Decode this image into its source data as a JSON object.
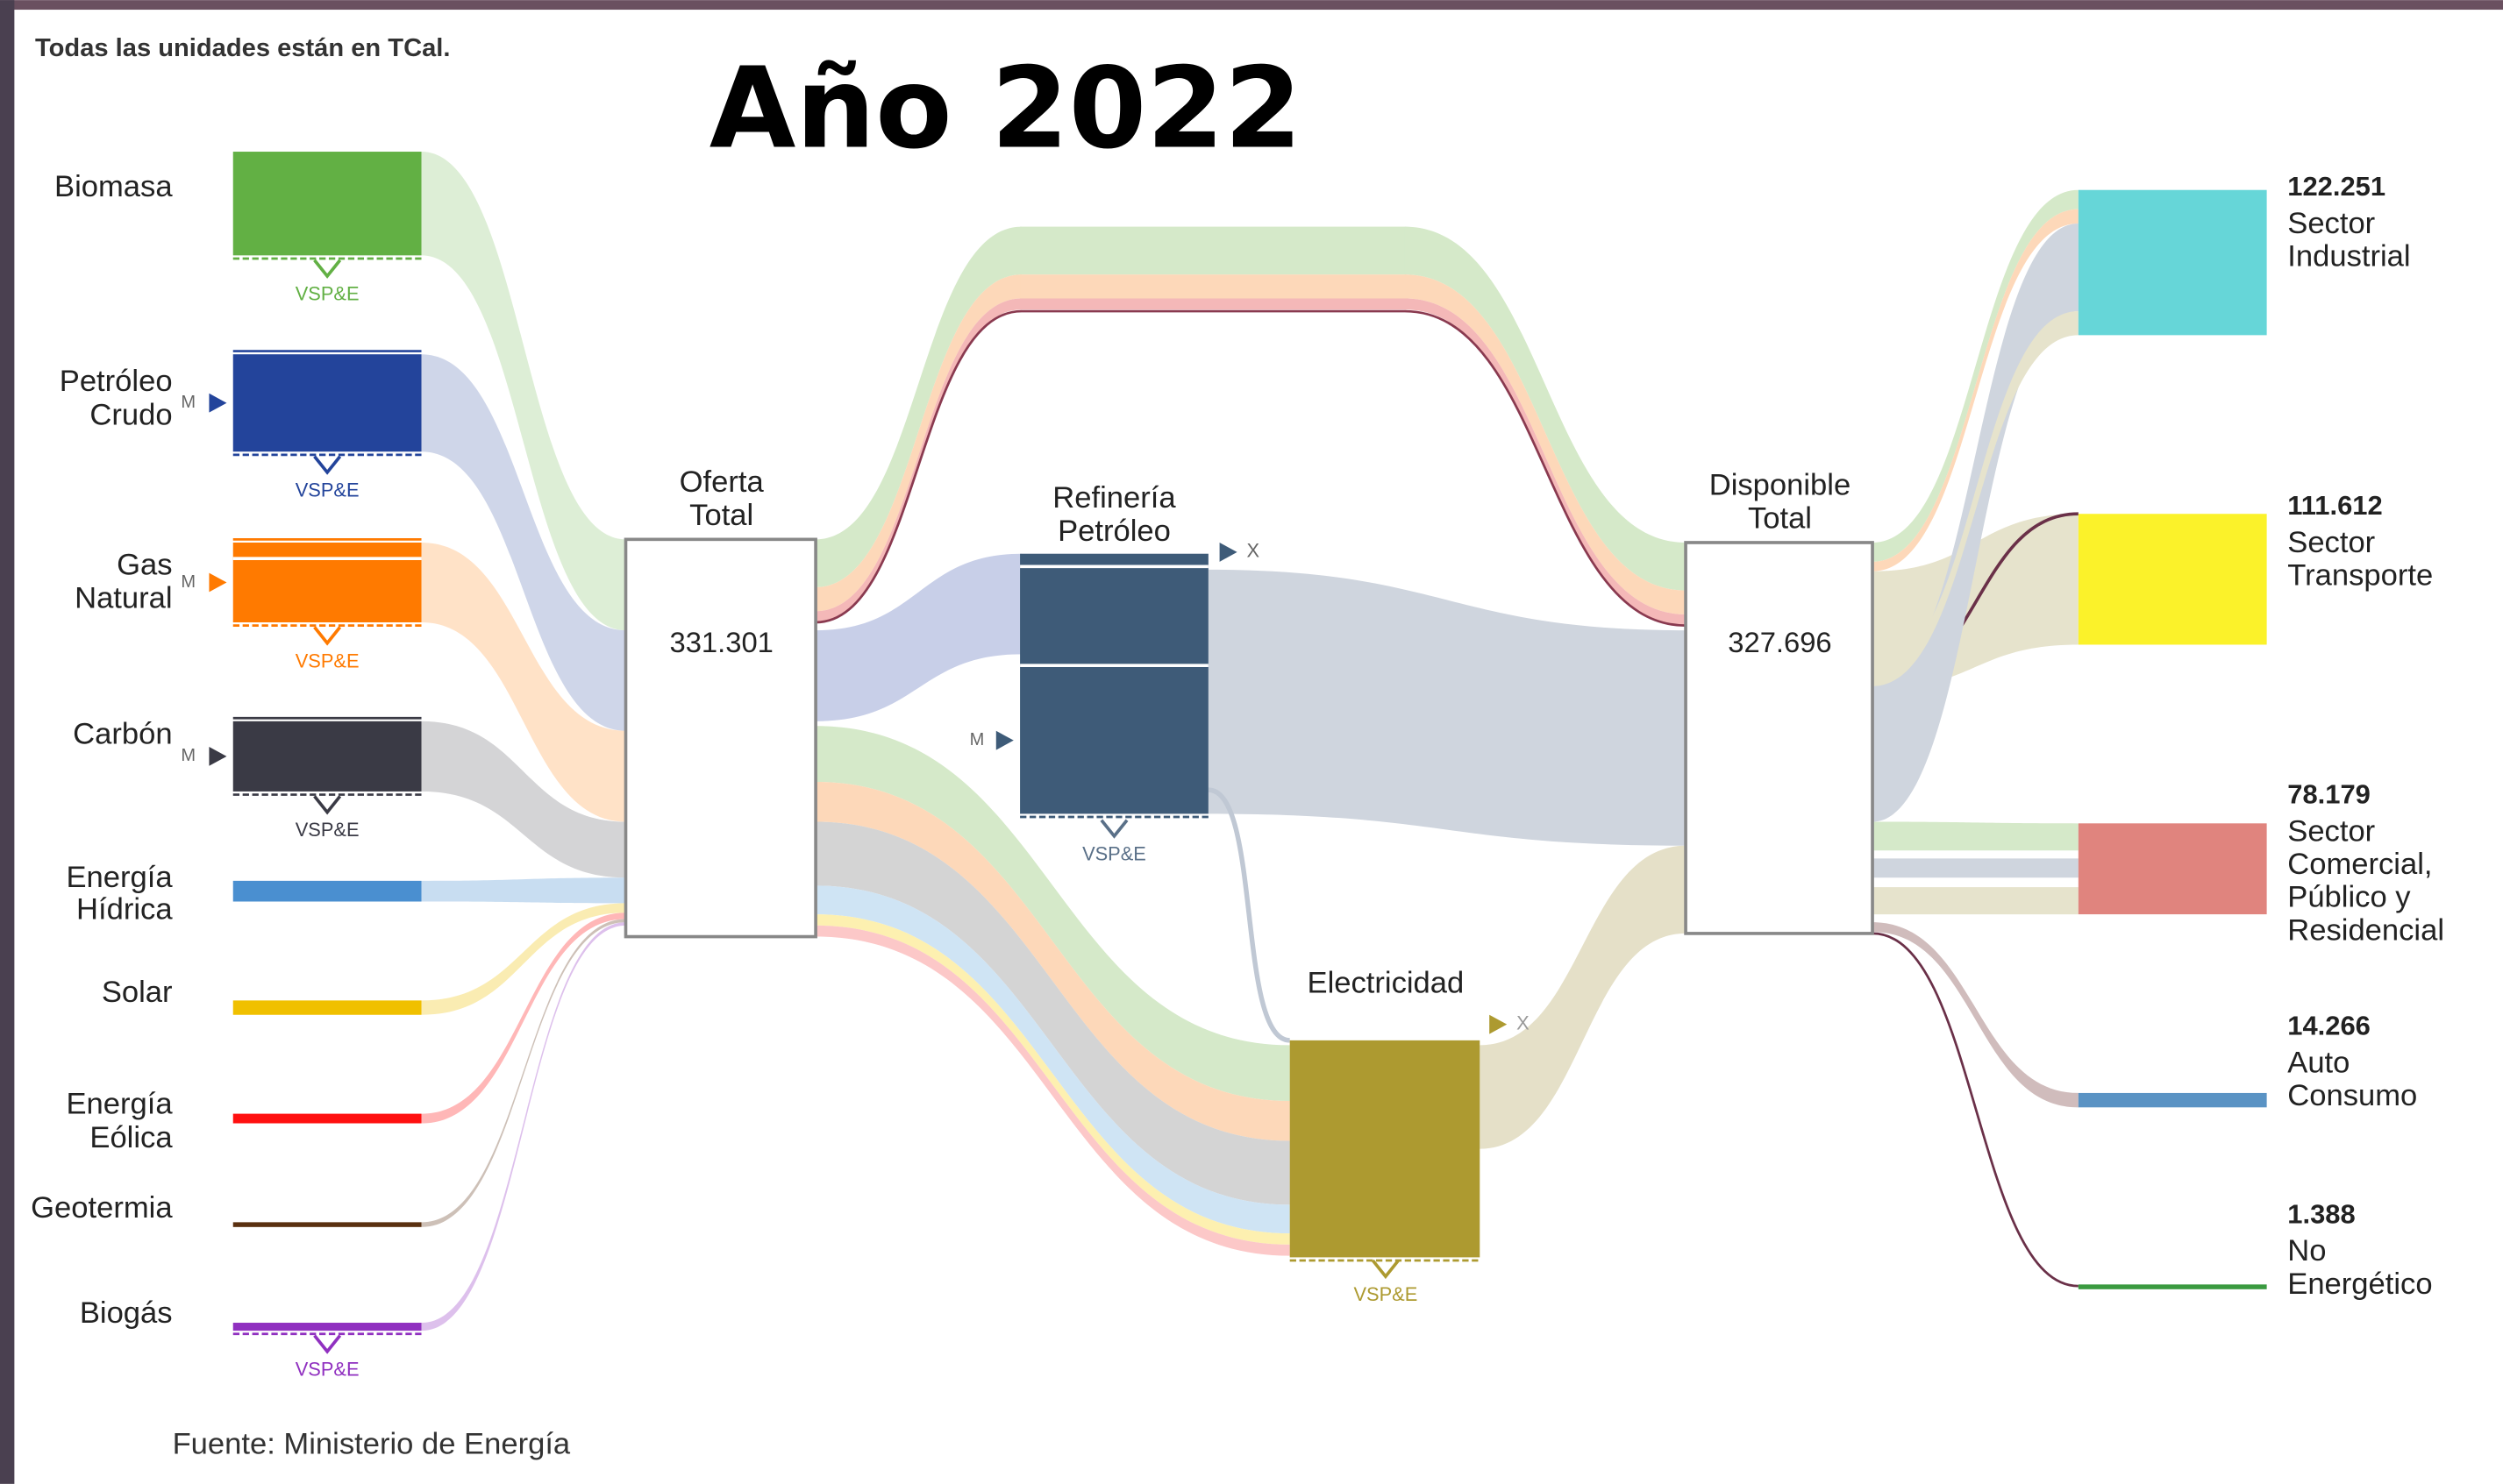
{
  "note": "Todas las unidades están en TCal.",
  "title": "Año 2022",
  "source": "Fuente: Ministerio de Energía",
  "badges": {
    "vspe": "VSP&E",
    "m": "M",
    "x": "X"
  },
  "sources": [
    {
      "lines": [
        "Biomasa"
      ],
      "color": "#62b044"
    },
    {
      "lines": [
        "Petróleo",
        "Crudo"
      ],
      "color": "#23449b"
    },
    {
      "lines": [
        "Gas",
        "Natural"
      ],
      "color": "#ff7a00"
    },
    {
      "lines": [
        "Carbón"
      ],
      "color": "#3a3a45"
    },
    {
      "lines": [
        "Energía",
        "Hídrica"
      ],
      "color": "#4a8fd0"
    },
    {
      "lines": [
        "Solar"
      ],
      "color": "#f0c000"
    },
    {
      "lines": [
        "Energía",
        "Eólica"
      ],
      "color": "#ff1010"
    },
    {
      "lines": [
        "Geotermia"
      ],
      "color": "#5a3010"
    },
    {
      "lines": [
        "Biogás"
      ],
      "color": "#9030c0"
    }
  ],
  "nodes": {
    "oferta": {
      "lines": [
        "Oferta",
        "Total"
      ],
      "value": "331.301"
    },
    "refineria": {
      "lines": [
        "Refinería",
        "Petróleo"
      ],
      "color": "#3e5b78"
    },
    "electricidad": {
      "lines": [
        "Electricidad"
      ],
      "color": "#ad9a30"
    },
    "disponible": {
      "lines": [
        "Disponible",
        "Total"
      ],
      "value": "327.696"
    }
  },
  "sinks": [
    {
      "value": "122.251",
      "lines": [
        "Sector",
        "Industrial"
      ],
      "color": "#66d6d8"
    },
    {
      "value": "111.612",
      "lines": [
        "Sector",
        "Transporte"
      ],
      "color": "#fbf22a"
    },
    {
      "value": "78.179",
      "lines": [
        "Sector",
        "Comercial,",
        "Público y",
        "Residencial"
      ],
      "color": "#e0847e"
    },
    {
      "value": "14.266",
      "lines": [
        "Auto",
        "Consumo"
      ],
      "color": "#5a93c4"
    },
    {
      "value": "1.388",
      "lines": [
        "No",
        "Energético"
      ],
      "color": "#3a9a40"
    }
  ]
}
